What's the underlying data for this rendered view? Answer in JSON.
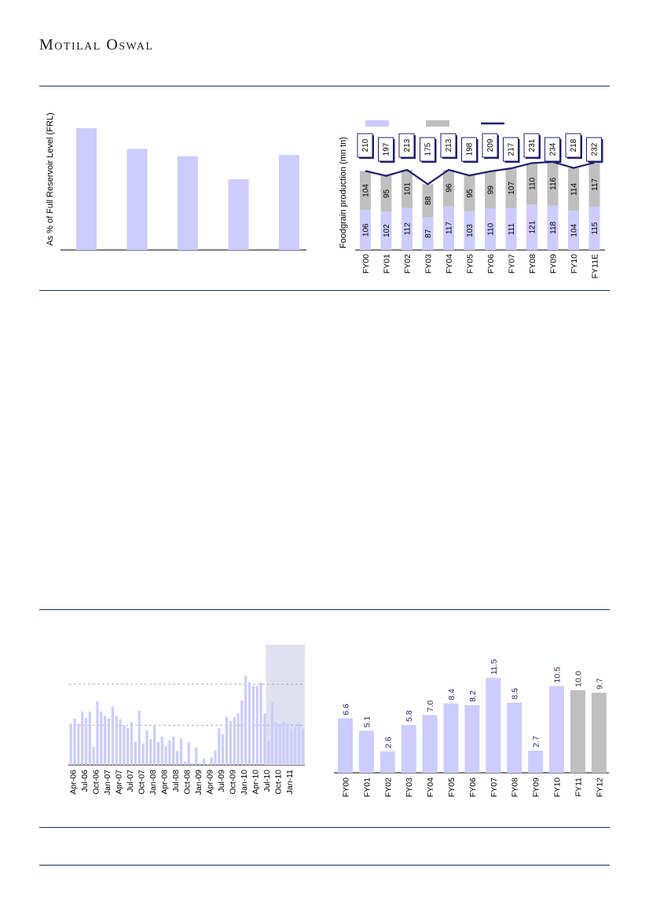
{
  "header": {
    "brand": "Motilal Oswal"
  },
  "colors": {
    "rule": "#1f2a6b",
    "lavender": "#ccccff",
    "grey": "#bfbfbf",
    "navy": "#1f1f6f",
    "shade": "#e0e0f0"
  },
  "chart_data": [
    {
      "type": "bar",
      "ylabel": "As % of Full Reservoir Level (FRL)",
      "values": [
        100,
        83,
        77,
        58,
        78
      ],
      "ylim": [
        0,
        100
      ]
    },
    {
      "type": "bar",
      "stacked": true,
      "ylabel": "Foodgrain production (mn tn)",
      "categories": [
        "FY00",
        "FY01",
        "FY02",
        "FY03",
        "FY04",
        "FY05",
        "FY06",
        "FY07",
        "FY08",
        "FY09",
        "FY10",
        "FY11E"
      ],
      "series": [
        {
          "color": "#ccccff",
          "values": [
            106,
            102,
            112,
            87,
            117,
            103,
            110,
            111,
            121,
            118,
            104,
            115
          ]
        },
        {
          "color": "#bfbfbf",
          "values": [
            104,
            95,
            101,
            88,
            96,
            95,
            99,
            107,
            110,
            116,
            114,
            117
          ]
        },
        {
          "type": "line",
          "color": "#1f1f6f",
          "values": [
            210,
            197,
            213,
            175,
            213,
            198,
            209,
            217,
            231,
            234,
            218,
            232
          ]
        }
      ],
      "ylim": [
        0,
        250
      ]
    },
    {
      "type": "bar",
      "x_ticks": [
        "Apr-06",
        "Jul-06",
        "Oct-06",
        "Jan-07",
        "Apr-07",
        "Jul-07",
        "Oct-07",
        "Jan-08",
        "Apr-08",
        "Jul-08",
        "Oct-08",
        "Jan-09",
        "Apr-09",
        "Jul-09",
        "Oct-09",
        "Jan-10",
        "Apr-10",
        "Jul-10",
        "Oct-10",
        "Jan-11"
      ],
      "values": [
        48,
        54,
        48,
        62,
        55,
        62,
        21,
        74,
        62,
        57,
        54,
        68,
        57,
        53,
        46,
        43,
        50,
        27,
        63,
        25,
        40,
        30,
        46,
        27,
        33,
        22,
        29,
        33,
        16,
        31,
        4,
        26,
        2,
        20,
        2,
        7,
        1,
        9,
        17,
        43,
        36,
        56,
        51,
        56,
        60,
        75,
        104,
        96,
        92,
        92,
        96,
        60,
        28,
        73,
        50,
        48,
        50,
        48,
        42,
        44,
        49,
        42
      ],
      "gridlines": [
        46,
        94
      ],
      "highlight_from_index": 52,
      "ylim": [
        0,
        140
      ]
    },
    {
      "type": "bar",
      "categories": [
        "FY00",
        "FY01",
        "FY02",
        "FY03",
        "FY04",
        "FY05",
        "FY06",
        "FY07",
        "FY08",
        "FY09",
        "FY10",
        "FY11",
        "FY12"
      ],
      "values": [
        6.6,
        5.1,
        2.6,
        5.8,
        7.0,
        8.4,
        8.2,
        11.5,
        8.5,
        2.7,
        10.5,
        10.0,
        9.7
      ],
      "labels": [
        "6.6",
        "5.1",
        "2.6",
        "5.8",
        "7.0",
        "8.4",
        "8.2",
        "11.5",
        "8.5",
        "2.7",
        "10.5",
        "10.0",
        "9.7"
      ],
      "colors": [
        "#ccccff",
        "#ccccff",
        "#ccccff",
        "#ccccff",
        "#ccccff",
        "#ccccff",
        "#ccccff",
        "#ccccff",
        "#ccccff",
        "#ccccff",
        "#ccccff",
        "#bfbfbf",
        "#bfbfbf"
      ],
      "ylim": [
        0,
        14
      ]
    }
  ]
}
